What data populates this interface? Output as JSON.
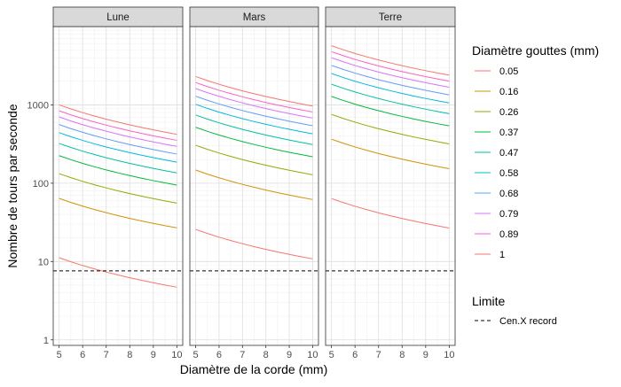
{
  "chart_data": {
    "type": "line",
    "xlabel": "Diamètre de la corde (mm)",
    "ylabel": "Nombre de tours par seconde",
    "y_scale": "log10",
    "x_ticks": [
      5,
      6,
      7,
      8,
      9,
      10
    ],
    "y_ticks": [
      1,
      10,
      100,
      1000
    ],
    "y_tick_labels": [
      "1",
      "10",
      "100",
      "1000"
    ],
    "xlim": [
      4.75,
      10.25
    ],
    "ylim": [
      0.85,
      10000
    ],
    "grid": true,
    "x": [
      5,
      5.5,
      6,
      6.5,
      7,
      7.5,
      8,
      8.5,
      9,
      9.5,
      10
    ],
    "legend": {
      "title": "Diamètre gouttes (mm)",
      "position": "right"
    },
    "limit_legend": {
      "title": "Limite",
      "label": "Cen.X record"
    },
    "limit_value": 7.6,
    "series_colors": [
      "#F8766D",
      "#D39200",
      "#93AA00",
      "#00BA38",
      "#00C19F",
      "#00B9E3",
      "#619CFF",
      "#DB72FB",
      "#FF61C3",
      "#F8766D"
    ],
    "series_names": [
      "0.05",
      "0.16",
      "0.26",
      "0.37",
      "0.47",
      "0.58",
      "0.68",
      "0.79",
      "0.89",
      "1"
    ],
    "drop_diameters_mm": [
      0.05,
      0.16,
      0.26,
      0.37,
      0.47,
      0.58,
      0.68,
      0.79,
      0.89,
      1.0
    ],
    "panels": [
      {
        "name": "Lune",
        "value_at_5mm_for_1mm_drop": 1000
      },
      {
        "name": "Mars",
        "value_at_5mm_for_1mm_drop": 2300
      },
      {
        "name": "Terre",
        "value_at_5mm_for_1mm_drop": 5700
      }
    ]
  }
}
